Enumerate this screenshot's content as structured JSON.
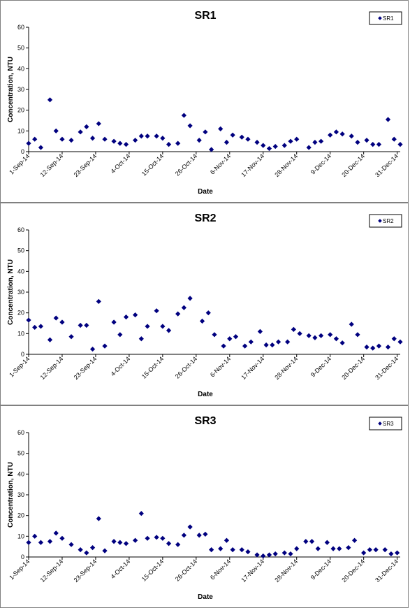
{
  "chart_data": [
    {
      "type": "scatter",
      "title": "SR1",
      "xlabel": "Date",
      "ylabel": "Concentration, NTU",
      "ylim": [
        0,
        60
      ],
      "yticks": [
        "0",
        "10",
        "20",
        "30",
        "40",
        "50",
        "60"
      ],
      "xticks": [
        "1-Sep-14",
        "12-Sep-14",
        "23-Sep-14",
        "4-Oct-14",
        "15-Oct-14",
        "26-Oct-14",
        "6-Nov-14",
        "17-Nov-14",
        "28-Nov-14",
        "9-Dec-14",
        "20-Dec-14",
        "31-Dec-14"
      ],
      "xlim": [
        "2014-09-01",
        "2014-12-31"
      ],
      "grid": false,
      "legend": "top-right",
      "marker_color": "#00007f",
      "series": [
        {
          "name": "SR1",
          "points": [
            [
              "2014-09-01",
              4
            ],
            [
              "2014-09-03",
              6
            ],
            [
              "2014-09-05",
              2
            ],
            [
              "2014-09-08",
              25
            ],
            [
              "2014-09-10",
              10
            ],
            [
              "2014-09-12",
              6
            ],
            [
              "2014-09-15",
              5.5
            ],
            [
              "2014-09-18",
              9.5
            ],
            [
              "2014-09-20",
              12
            ],
            [
              "2014-09-22",
              6.5
            ],
            [
              "2014-09-24",
              13.5
            ],
            [
              "2014-09-26",
              6
            ],
            [
              "2014-09-29",
              5
            ],
            [
              "2014-10-01",
              4
            ],
            [
              "2014-10-03",
              3.5
            ],
            [
              "2014-10-06",
              5.5
            ],
            [
              "2014-10-08",
              7.5
            ],
            [
              "2014-10-10",
              7.5
            ],
            [
              "2014-10-13",
              7.5
            ],
            [
              "2014-10-15",
              6.5
            ],
            [
              "2014-10-17",
              3.5
            ],
            [
              "2014-10-20",
              4
            ],
            [
              "2014-10-22",
              17.5
            ],
            [
              "2014-10-24",
              12.5
            ],
            [
              "2014-10-27",
              5.5
            ],
            [
              "2014-10-29",
              9.5
            ],
            [
              "2014-10-31",
              1
            ],
            [
              "2014-11-03",
              11
            ],
            [
              "2014-11-05",
              4.5
            ],
            [
              "2014-11-07",
              8
            ],
            [
              "2014-11-10",
              7
            ],
            [
              "2014-11-12",
              6
            ],
            [
              "2014-11-15",
              4.5
            ],
            [
              "2014-11-17",
              3
            ],
            [
              "2014-11-19",
              1.5
            ],
            [
              "2014-11-21",
              2.5
            ],
            [
              "2014-11-24",
              3
            ],
            [
              "2014-11-26",
              5
            ],
            [
              "2014-11-28",
              6
            ],
            [
              "2014-12-02",
              2
            ],
            [
              "2014-12-04",
              4.5
            ],
            [
              "2014-12-06",
              5
            ],
            [
              "2014-12-09",
              8
            ],
            [
              "2014-12-11",
              9.5
            ],
            [
              "2014-12-13",
              8.5
            ],
            [
              "2014-12-16",
              7.5
            ],
            [
              "2014-12-18",
              4.5
            ],
            [
              "2014-12-21",
              5.5
            ],
            [
              "2014-12-23",
              3.5
            ],
            [
              "2014-12-25",
              3.5
            ],
            [
              "2014-12-28",
              15.5
            ],
            [
              "2014-12-30",
              6
            ],
            [
              "2015-01-01",
              3.5
            ]
          ]
        }
      ]
    },
    {
      "type": "scatter",
      "title": "SR2",
      "xlabel": "Date",
      "ylabel": "Concentration, NTU",
      "ylim": [
        0,
        60
      ],
      "yticks": [
        "0",
        "10",
        "20",
        "30",
        "40",
        "50",
        "60"
      ],
      "xticks": [
        "1-Sep-14",
        "12-Sep-14",
        "23-Sep-14",
        "4-Oct-14",
        "15-Oct-14",
        "26-Oct-14",
        "6-Nov-14",
        "17-Nov-14",
        "28-Nov-14",
        "9-Dec-14",
        "20-Dec-14",
        "31-Dec-14"
      ],
      "xlim": [
        "2014-09-01",
        "2014-12-31"
      ],
      "grid": false,
      "legend": "top-right",
      "marker_color": "#00007f",
      "series": [
        {
          "name": "SR2",
          "points": [
            [
              "2014-09-01",
              16.5
            ],
            [
              "2014-09-03",
              13
            ],
            [
              "2014-09-05",
              13.5
            ],
            [
              "2014-09-08",
              7
            ],
            [
              "2014-09-10",
              17.5
            ],
            [
              "2014-09-12",
              15.5
            ],
            [
              "2014-09-15",
              8.5
            ],
            [
              "2014-09-18",
              14
            ],
            [
              "2014-09-20",
              14
            ],
            [
              "2014-09-22",
              2.5
            ],
            [
              "2014-09-24",
              25.5
            ],
            [
              "2014-09-26",
              4
            ],
            [
              "2014-09-29",
              15.5
            ],
            [
              "2014-10-01",
              9.5
            ],
            [
              "2014-10-03",
              18
            ],
            [
              "2014-10-06",
              19
            ],
            [
              "2014-10-08",
              7.5
            ],
            [
              "2014-10-10",
              13.5
            ],
            [
              "2014-10-13",
              21
            ],
            [
              "2014-10-15",
              13.5
            ],
            [
              "2014-10-17",
              11.5
            ],
            [
              "2014-10-20",
              19.5
            ],
            [
              "2014-10-22",
              22.5
            ],
            [
              "2014-10-24",
              27
            ],
            [
              "2014-10-28",
              16
            ],
            [
              "2014-10-30",
              20
            ],
            [
              "2014-11-01",
              9.5
            ],
            [
              "2014-11-04",
              4
            ],
            [
              "2014-11-06",
              7.5
            ],
            [
              "2014-11-08",
              8.5
            ],
            [
              "2014-11-11",
              4
            ],
            [
              "2014-11-13",
              6
            ],
            [
              "2014-11-16",
              11
            ],
            [
              "2014-11-18",
              4.5
            ],
            [
              "2014-11-20",
              4.5
            ],
            [
              "2014-11-22",
              6
            ],
            [
              "2014-11-25",
              6
            ],
            [
              "2014-11-27",
              12
            ],
            [
              "2014-11-29",
              10
            ],
            [
              "2014-12-02",
              9
            ],
            [
              "2014-12-04",
              8
            ],
            [
              "2014-12-06",
              9
            ],
            [
              "2014-12-09",
              9.5
            ],
            [
              "2014-12-11",
              7.5
            ],
            [
              "2014-12-13",
              5.5
            ],
            [
              "2014-12-16",
              14.5
            ],
            [
              "2014-12-18",
              9.5
            ],
            [
              "2014-12-21",
              3.5
            ],
            [
              "2014-12-23",
              3
            ],
            [
              "2014-12-25",
              4
            ],
            [
              "2014-12-28",
              3.5
            ],
            [
              "2014-12-30",
              7.5
            ],
            [
              "2015-01-01",
              6
            ]
          ]
        }
      ]
    },
    {
      "type": "scatter",
      "title": "SR3",
      "xlabel": "Date",
      "ylabel": "Concentration, NTU",
      "ylim": [
        0,
        60
      ],
      "yticks": [
        "0",
        "10",
        "20",
        "30",
        "40",
        "50",
        "60"
      ],
      "xticks": [
        "1-Sep-14",
        "12-Sep-14",
        "23-Sep-14",
        "4-Oct-14",
        "15-Oct-14",
        "26-Oct-14",
        "6-Nov-14",
        "17-Nov-14",
        "28-Nov-14",
        "9-Dec-14",
        "20-Dec-14",
        "31-Dec-14"
      ],
      "xlim": [
        "2014-09-01",
        "2014-12-31"
      ],
      "grid": false,
      "legend": "top-right",
      "marker_color": "#00007f",
      "series": [
        {
          "name": "SR3",
          "points": [
            [
              "2014-09-01",
              7
            ],
            [
              "2014-09-03",
              10
            ],
            [
              "2014-09-05",
              7
            ],
            [
              "2014-09-08",
              7.5
            ],
            [
              "2014-09-10",
              11.5
            ],
            [
              "2014-09-12",
              9
            ],
            [
              "2014-09-15",
              6
            ],
            [
              "2014-09-18",
              3.5
            ],
            [
              "2014-09-20",
              2
            ],
            [
              "2014-09-22",
              4.5
            ],
            [
              "2014-09-24",
              18.5
            ],
            [
              "2014-09-26",
              3
            ],
            [
              "2014-09-29",
              7.5
            ],
            [
              "2014-10-01",
              7
            ],
            [
              "2014-10-03",
              6.5
            ],
            [
              "2014-10-06",
              8
            ],
            [
              "2014-10-08",
              21
            ],
            [
              "2014-10-10",
              9
            ],
            [
              "2014-10-13",
              9.5
            ],
            [
              "2014-10-15",
              9
            ],
            [
              "2014-10-17",
              6.5
            ],
            [
              "2014-10-20",
              6
            ],
            [
              "2014-10-22",
              10.5
            ],
            [
              "2014-10-24",
              14.5
            ],
            [
              "2014-10-27",
              10.5
            ],
            [
              "2014-10-29",
              11
            ],
            [
              "2014-10-31",
              3.5
            ],
            [
              "2014-11-03",
              4
            ],
            [
              "2014-11-05",
              8
            ],
            [
              "2014-11-07",
              3.5
            ],
            [
              "2014-11-10",
              3.5
            ],
            [
              "2014-11-12",
              2.5
            ],
            [
              "2014-11-15",
              1
            ],
            [
              "2014-11-17",
              0.5
            ],
            [
              "2014-11-19",
              1
            ],
            [
              "2014-11-21",
              1.5
            ],
            [
              "2014-11-24",
              2
            ],
            [
              "2014-11-26",
              1.5
            ],
            [
              "2014-11-28",
              4
            ],
            [
              "2014-12-01",
              7.5
            ],
            [
              "2014-12-03",
              7.5
            ],
            [
              "2014-12-05",
              4
            ],
            [
              "2014-12-08",
              7
            ],
            [
              "2014-12-10",
              4
            ],
            [
              "2014-12-12",
              4
            ],
            [
              "2014-12-15",
              4.5
            ],
            [
              "2014-12-17",
              8
            ],
            [
              "2014-12-20",
              2
            ],
            [
              "2014-12-22",
              3.5
            ],
            [
              "2014-12-24",
              3.5
            ],
            [
              "2014-12-27",
              3.5
            ],
            [
              "2014-12-29",
              1.5
            ],
            [
              "2014-12-31",
              2
            ]
          ]
        }
      ]
    }
  ]
}
